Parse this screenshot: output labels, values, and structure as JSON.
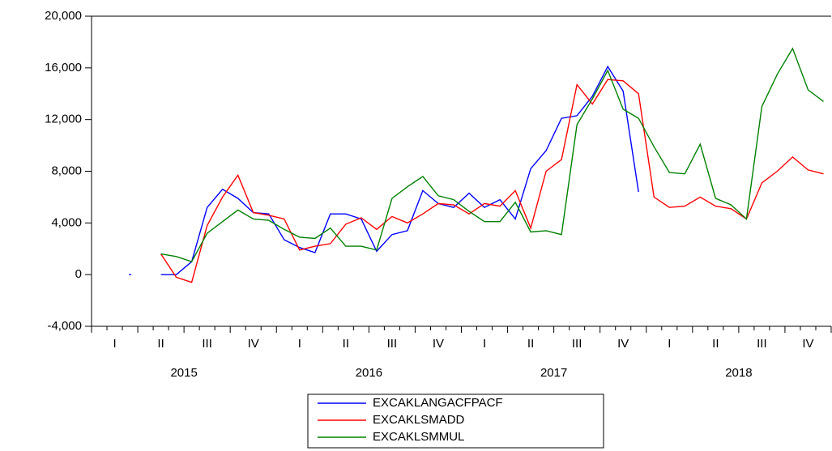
{
  "chart_data": {
    "type": "line",
    "ylim": [
      -4000,
      20000
    ],
    "yticks": [
      {
        "value": -4000,
        "label": "-4,000"
      },
      0,
      {
        "value": 4000,
        "label": "4,000"
      },
      {
        "value": 8000,
        "label": "8,000"
      },
      {
        "value": 12000,
        "label": "12,000"
      },
      {
        "value": 16000,
        "label": "16,000"
      },
      {
        "value": 20000,
        "label": "20,000"
      }
    ],
    "quarter_labels": [
      "I",
      "II",
      "III",
      "IV",
      "I",
      "II",
      "III",
      "IV",
      "I",
      "II",
      "III",
      "IV",
      "I",
      "II",
      "III",
      "IV"
    ],
    "year_labels": [
      "2015",
      "2016",
      "2017",
      "2018"
    ],
    "series": [
      {
        "name": "EXCAKLANGACFPACF",
        "color": "#0000ff",
        "values": [
          null,
          null,
          0,
          null,
          0,
          0,
          1000,
          5200,
          6600,
          5900,
          4800,
          4700,
          2700,
          2100,
          1700,
          4700,
          4700,
          4300,
          1800,
          3100,
          3400,
          6500,
          5500,
          5200,
          6300,
          5200,
          5800,
          4300,
          8200,
          9600,
          12100,
          12300,
          13800,
          16100,
          14200,
          6400,
          null,
          null,
          null,
          null,
          null,
          null,
          null,
          null,
          null,
          null,
          null,
          null
        ]
      },
      {
        "name": "EXCAKLSMADD",
        "color": "#ff0000",
        "values": [
          null,
          null,
          null,
          null,
          1600,
          -200,
          -600,
          3800,
          6000,
          7700,
          4800,
          4600,
          4300,
          1900,
          2200,
          2400,
          3900,
          4400,
          3500,
          4500,
          4000,
          4700,
          5500,
          5400,
          4700,
          5500,
          5300,
          6500,
          3600,
          8000,
          8900,
          14700,
          13200,
          15100,
          15000,
          14000,
          6000,
          5200,
          5300,
          6000,
          5300,
          5100,
          4300,
          7100,
          8000,
          9100,
          8100,
          7800
        ]
      },
      {
        "name": "EXCAKLSMMUL",
        "color": "#008000",
        "values": [
          null,
          null,
          null,
          null,
          1600,
          1400,
          1000,
          3200,
          4100,
          5000,
          4300,
          4200,
          3500,
          2900,
          2800,
          3600,
          2200,
          2200,
          1900,
          5900,
          6800,
          7600,
          6100,
          5800,
          4900,
          4100,
          4100,
          5600,
          3300,
          3400,
          3100,
          11600,
          13600,
          15800,
          12800,
          12100,
          9900,
          7900,
          7800,
          10100,
          5900,
          5400,
          4300,
          13000,
          15500,
          17500,
          14300,
          13400
        ]
      }
    ]
  }
}
